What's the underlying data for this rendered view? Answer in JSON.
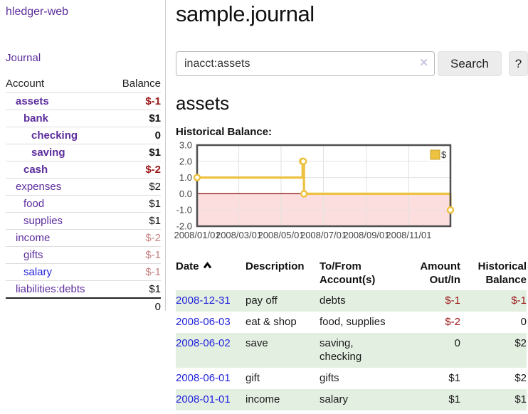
{
  "colors": {
    "accent_purple": "#5c2d9c",
    "link_blue": "#2424dd",
    "negative": "#9b1515",
    "negative_soft": "#c68282",
    "row_green": "#e3efe1",
    "series_gold": "#edc240",
    "negative_region": "#fcdede",
    "zero_line": "#8b0000"
  },
  "sidebar": {
    "brand": "hledger-web",
    "nav_journal": "Journal",
    "accounts_table": {
      "headers": [
        "Account",
        "Balance"
      ],
      "rows": [
        {
          "account": "assets",
          "balance": "$-1",
          "depth": 1,
          "bold": true,
          "balance_tone": "neg",
          "link_tone": "purple"
        },
        {
          "account": "bank",
          "balance": "$1",
          "depth": 2,
          "bold": true,
          "balance_tone": "normal",
          "link_tone": "purple"
        },
        {
          "account": "checking",
          "balance": "0",
          "depth": 3,
          "bold": true,
          "balance_tone": "normal",
          "link_tone": "purple"
        },
        {
          "account": "saving",
          "balance": "$1",
          "depth": 3,
          "bold": true,
          "balance_tone": "normal",
          "link_tone": "purple"
        },
        {
          "account": "cash",
          "balance": "$-2",
          "depth": 2,
          "bold": true,
          "balance_tone": "neg",
          "link_tone": "purple"
        },
        {
          "account": "expenses",
          "balance": "$2",
          "depth": 1,
          "bold": false,
          "balance_tone": "normal",
          "link_tone": "purple"
        },
        {
          "account": "food",
          "balance": "$1",
          "depth": 2,
          "bold": false,
          "balance_tone": "normal",
          "link_tone": "purple"
        },
        {
          "account": "supplies",
          "balance": "$1",
          "depth": 2,
          "bold": false,
          "balance_tone": "normal",
          "link_tone": "purple"
        },
        {
          "account": "income",
          "balance": "$-2",
          "depth": 1,
          "bold": false,
          "balance_tone": "negsoft",
          "link_tone": "purple"
        },
        {
          "account": "gifts",
          "balance": "$-1",
          "depth": 2,
          "bold": false,
          "balance_tone": "negsoft",
          "link_tone": "purple"
        },
        {
          "account": "salary",
          "balance": "$-1",
          "depth": 2,
          "bold": false,
          "balance_tone": "negsoft",
          "link_tone": "blue"
        },
        {
          "account": "liabilities:debts",
          "balance": "$1",
          "depth": 1,
          "bold": false,
          "balance_tone": "normal",
          "link_tone": "purple"
        }
      ],
      "total": "0"
    }
  },
  "main": {
    "title": "sample.journal",
    "search": {
      "value": "inacct:assets",
      "clear_icon": "✕",
      "button_label": "Search",
      "help_label": "?"
    },
    "account_heading": "assets",
    "chart_label": "Historical Balance:"
  },
  "chart_data": {
    "type": "line",
    "title": "Historical Balance",
    "steps": true,
    "x_range": [
      "2008-01-01",
      "2008-12-31"
    ],
    "ylim": [
      -2,
      3
    ],
    "y_ticks": [
      "3.0",
      "2.0",
      "1.0",
      "0.0",
      "-1.0",
      "-2.0"
    ],
    "x_ticks": [
      {
        "date": "2008-01-01",
        "label": "2008/01/01"
      },
      {
        "date": "2008-03-01",
        "label": "2008/03/01"
      },
      {
        "date": "2008-05-01",
        "label": "2008/05/01"
      },
      {
        "date": "2008-07-01",
        "label": "2008/07/01"
      },
      {
        "date": "2008-09-01",
        "label": "2008/09/01"
      },
      {
        "date": "2008-11-01",
        "label": "2008/11/01"
      }
    ],
    "legend": [
      {
        "label": "$",
        "color": "#edc240"
      }
    ],
    "legend_position": "top-right",
    "grid": true,
    "series": [
      {
        "name": "$",
        "color": "#edc240",
        "points": [
          [
            "2008-01-01",
            1
          ],
          [
            "2008-06-01",
            2
          ],
          [
            "2008-06-02",
            2
          ],
          [
            "2008-06-03",
            0
          ],
          [
            "2008-12-31",
            -1
          ]
        ]
      }
    ]
  },
  "register": {
    "headers": {
      "date": "Date",
      "description": "Description",
      "tofrom": "To/From\nAccount(s)",
      "amount": "Amount\nOut/In",
      "balance": "Historical\nBalance"
    },
    "rows": [
      {
        "date": "2008-12-31",
        "description": "pay off",
        "tofrom": "debts",
        "amount": "$-1",
        "balance": "$-1"
      },
      {
        "date": "2008-06-03",
        "description": "eat & shop",
        "tofrom": "food, supplies",
        "amount": "$-2",
        "balance": "0"
      },
      {
        "date": "2008-06-02",
        "description": "save",
        "tofrom": "saving,\nchecking",
        "amount": "0",
        "balance": "$2"
      },
      {
        "date": "2008-06-01",
        "description": "gift",
        "tofrom": "gifts",
        "amount": "$1",
        "balance": "$2"
      },
      {
        "date": "2008-01-01",
        "description": "income",
        "tofrom": "salary",
        "amount": "$1",
        "balance": "$1"
      }
    ]
  }
}
